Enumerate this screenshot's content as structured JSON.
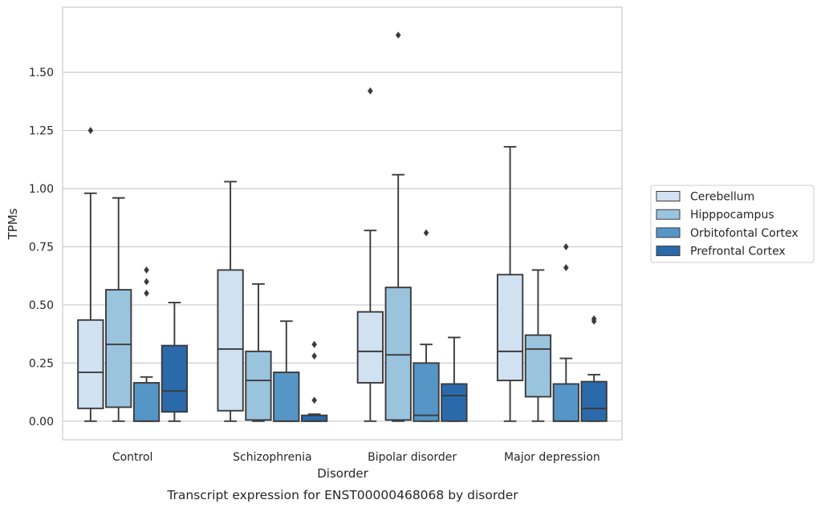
{
  "chart_data": {
    "type": "boxplot",
    "title": "",
    "caption": "Transcript expression for ENST00000468068 by disorder",
    "xlabel": "Disorder",
    "ylabel": "TPMs",
    "categories": [
      "Control",
      "Schizophrenia",
      "Bipolar disorder",
      "Major depression"
    ],
    "ylim": [
      -0.08,
      1.78
    ],
    "yticks": [
      0.0,
      0.25,
      0.5,
      0.75,
      1.0,
      1.25,
      1.5
    ],
    "ytick_labels": [
      "0.00",
      "0.25",
      "0.50",
      "0.75",
      "1.00",
      "1.25",
      "1.50"
    ],
    "grid": "horizontal",
    "legend_position": "right",
    "box_edge_color": "#3b3b3b",
    "series": [
      {
        "name": "Cerebellum",
        "color": "#d0e1f2",
        "boxes": [
          {
            "whisker_low": 0.0,
            "q1": 0.055,
            "median": 0.21,
            "q3": 0.435,
            "whisker_high": 0.98,
            "outliers": [
              1.25
            ]
          },
          {
            "whisker_low": 0.0,
            "q1": 0.045,
            "median": 0.31,
            "q3": 0.65,
            "whisker_high": 1.03,
            "outliers": []
          },
          {
            "whisker_low": 0.0,
            "q1": 0.165,
            "median": 0.3,
            "q3": 0.47,
            "whisker_high": 0.82,
            "outliers": [
              1.42
            ]
          },
          {
            "whisker_low": 0.0,
            "q1": 0.175,
            "median": 0.3,
            "q3": 0.63,
            "whisker_high": 1.18,
            "outliers": []
          }
        ]
      },
      {
        "name": "Hipppocampus",
        "color": "#9ac3de",
        "boxes": [
          {
            "whisker_low": 0.0,
            "q1": 0.06,
            "median": 0.33,
            "q3": 0.565,
            "whisker_high": 0.96,
            "outliers": []
          },
          {
            "whisker_low": 0.0,
            "q1": 0.005,
            "median": 0.175,
            "q3": 0.3,
            "whisker_high": 0.59,
            "outliers": []
          },
          {
            "whisker_low": 0.0,
            "q1": 0.005,
            "median": 0.285,
            "q3": 0.575,
            "whisker_high": 1.06,
            "outliers": [
              1.66
            ]
          },
          {
            "whisker_low": 0.0,
            "q1": 0.105,
            "median": 0.31,
            "q3": 0.37,
            "whisker_high": 0.65,
            "outliers": []
          }
        ]
      },
      {
        "name": "Orbitofontal Cortex",
        "color": "#5596c7",
        "boxes": [
          {
            "whisker_low": 0.0,
            "q1": 0.0,
            "median": 0.0,
            "q3": 0.165,
            "whisker_high": 0.19,
            "outliers": [
              0.55,
              0.6,
              0.65
            ]
          },
          {
            "whisker_low": 0.0,
            "q1": 0.0,
            "median": 0.0,
            "q3": 0.21,
            "whisker_high": 0.43,
            "outliers": []
          },
          {
            "whisker_low": 0.0,
            "q1": 0.0,
            "median": 0.025,
            "q3": 0.25,
            "whisker_high": 0.33,
            "outliers": [
              0.81
            ]
          },
          {
            "whisker_low": 0.0,
            "q1": 0.0,
            "median": 0.0,
            "q3": 0.16,
            "whisker_high": 0.27,
            "outliers": [
              0.66,
              0.75
            ]
          }
        ]
      },
      {
        "name": "Prefrontal Cortex",
        "color": "#2a6aab",
        "boxes": [
          {
            "whisker_low": 0.0,
            "q1": 0.04,
            "median": 0.13,
            "q3": 0.325,
            "whisker_high": 0.51,
            "outliers": []
          },
          {
            "whisker_low": 0.0,
            "q1": 0.0,
            "median": 0.0,
            "q3": 0.025,
            "whisker_high": 0.03,
            "outliers": [
              0.09,
              0.28,
              0.33
            ]
          },
          {
            "whisker_low": 0.0,
            "q1": 0.0,
            "median": 0.11,
            "q3": 0.16,
            "whisker_high": 0.36,
            "outliers": []
          },
          {
            "whisker_low": 0.0,
            "q1": 0.0,
            "median": 0.055,
            "q3": 0.17,
            "whisker_high": 0.2,
            "outliers": [
              0.43,
              0.44
            ]
          }
        ]
      }
    ]
  }
}
